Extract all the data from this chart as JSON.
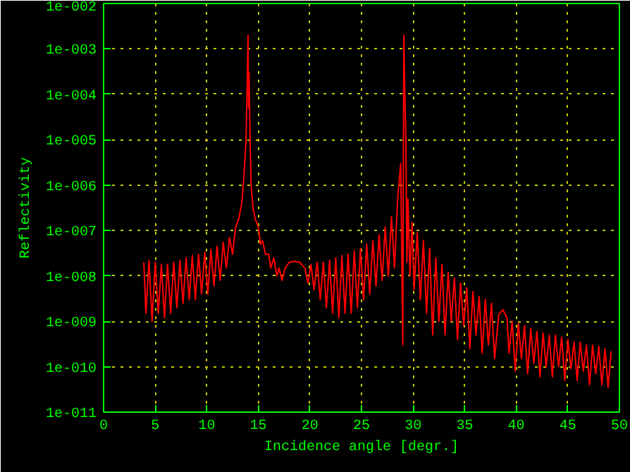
{
  "chart_data": {
    "type": "line",
    "xlabel": "Incidence angle [degr.]",
    "ylabel": "Reflectivity",
    "log": "y",
    "grid": true,
    "line_style": "solid",
    "xlim": [
      0,
      50
    ],
    "xticks": [
      0,
      5,
      10,
      15,
      20,
      25,
      30,
      35,
      40,
      45,
      50
    ],
    "ylim": [
      1e-11,
      0.01
    ],
    "yticks": [
      {
        "value": 1e-11,
        "label": "1e-011"
      },
      {
        "value": 1e-10,
        "label": "1e-010"
      },
      {
        "value": 1e-09,
        "label": "1e-009"
      },
      {
        "value": 1e-08,
        "label": "1e-008"
      },
      {
        "value": 1e-07,
        "label": "1e-007"
      },
      {
        "value": 1e-06,
        "label": "1e-006"
      },
      {
        "value": 1e-05,
        "label": "1e-005"
      },
      {
        "value": 0.0001,
        "label": "1e-004"
      },
      {
        "value": 0.001,
        "label": "1e-003"
      },
      {
        "value": 0.01,
        "label": "1e-002"
      }
    ],
    "series": [
      {
        "color": "#ff0000",
        "x": [
          3.9,
          4.1,
          4.4,
          4.7,
          5.0,
          5.3,
          5.6,
          5.9,
          6.2,
          6.5,
          6.8,
          7.1,
          7.4,
          7.7,
          8.0,
          8.3,
          8.6,
          8.9,
          9.2,
          9.5,
          9.8,
          10.1,
          10.4,
          10.7,
          11.0,
          11.3,
          11.6,
          11.9,
          12.2,
          12.5,
          12.8,
          13.1,
          13.4,
          13.6,
          13.8,
          13.9,
          14.0,
          14.05,
          14.1,
          14.2,
          14.3,
          14.5,
          14.7,
          15.0,
          15.2,
          15.4,
          15.7,
          16.0,
          16.2,
          16.5,
          16.8,
          17.0,
          17.3,
          17.6,
          18.0,
          18.5,
          19.0,
          19.5,
          19.8,
          20.1,
          20.4,
          20.7,
          21.0,
          21.3,
          21.6,
          21.9,
          22.2,
          22.5,
          22.8,
          23.1,
          23.4,
          23.7,
          24.0,
          24.3,
          24.6,
          24.9,
          25.2,
          25.5,
          25.8,
          26.1,
          26.4,
          26.7,
          27.0,
          27.3,
          27.6,
          27.9,
          28.2,
          28.5,
          28.8,
          29.0,
          29.1,
          29.2,
          29.3,
          29.4,
          29.5,
          29.7,
          29.9,
          30.1,
          30.4,
          30.7,
          31.0,
          31.3,
          31.6,
          31.9,
          32.2,
          32.5,
          32.8,
          33.1,
          33.4,
          33.7,
          34.0,
          34.3,
          34.6,
          34.9,
          35.2,
          35.5,
          35.8,
          36.1,
          36.4,
          36.7,
          37.0,
          37.3,
          37.6,
          37.9,
          38.3,
          38.7,
          39.1,
          39.3,
          39.6,
          39.9,
          40.2,
          40.5,
          40.8,
          41.1,
          41.4,
          41.7,
          42.0,
          42.3,
          42.6,
          42.9,
          43.2,
          43.5,
          43.8,
          44.1,
          44.4,
          44.7,
          45.0,
          45.3,
          45.6,
          45.9,
          46.2,
          46.5,
          46.8,
          47.1,
          47.4,
          47.7,
          48.0,
          48.3,
          48.6,
          48.9,
          49.2
        ],
        "values": [
          2e-08,
          1.5e-09,
          2.2e-08,
          1e-09,
          2e-08,
          1.5e-09,
          1.8e-08,
          1.2e-09,
          1.8e-08,
          1.5e-09,
          2e-08,
          2e-09,
          2.2e-08,
          2.5e-09,
          2.5e-08,
          3e-09,
          2.8e-08,
          3e-09,
          3e-08,
          4e-09,
          3.3e-08,
          4e-09,
          3.8e-08,
          6e-09,
          4.5e-08,
          8e-09,
          5.5e-08,
          1.5e-08,
          7e-08,
          3e-08,
          1.2e-07,
          1.8e-07,
          4e-07,
          1.5e-06,
          9e-06,
          0.0001,
          0.002,
          5e-05,
          0.0003,
          1e-05,
          1e-06,
          3e-07,
          1.8e-07,
          1.2e-07,
          5e-08,
          6e-08,
          3e-08,
          3e-08,
          1.5e-08,
          2.5e-08,
          1e-08,
          1.5e-08,
          8e-09,
          1.5e-08,
          2e-08,
          2.1e-08,
          2e-08,
          1.5e-08,
          7e-09,
          1.8e-08,
          5e-09,
          2e-08,
          3e-09,
          2e-08,
          2e-09,
          2.2e-08,
          1.5e-09,
          2.5e-08,
          1.2e-09,
          2.8e-08,
          1.5e-09,
          3e-08,
          1.5e-09,
          3.5e-08,
          2e-09,
          4e-08,
          3e-09,
          5e-08,
          4e-09,
          6e-08,
          6e-09,
          8e-08,
          8e-09,
          1.2e-07,
          1e-08,
          2e-07,
          1.5e-08,
          5e-07,
          3e-06,
          3e-10,
          0.002,
          0.0001,
          1e-05,
          2e-08,
          5e-07,
          1e-08,
          1.5e-07,
          5e-09,
          9e-08,
          3e-09,
          6e-08,
          1.5e-09,
          4e-08,
          5e-10,
          2.5e-08,
          1e-09,
          1.8e-08,
          5e-10,
          1.2e-08,
          1e-09,
          9e-09,
          4e-10,
          7e-09,
          8e-10,
          5.5e-09,
          2.5e-10,
          4.5e-09,
          5e-10,
          3.5e-09,
          2e-10,
          3e-09,
          3e-10,
          2.5e-09,
          1.5e-10,
          1.4e-09,
          1.8e-09,
          1.2e-09,
          2e-10,
          1e-09,
          8e-11,
          9e-10,
          1.5e-10,
          8e-10,
          7e-11,
          7e-10,
          1.2e-10,
          6e-10,
          6e-11,
          5.5e-10,
          1e-10,
          5e-10,
          6e-11,
          5e-10,
          1e-10,
          4.5e-10,
          5e-11,
          4e-10,
          9e-11,
          3.5e-10,
          5e-11,
          3.5e-10,
          8e-11,
          3e-10,
          4e-11,
          3e-10,
          7e-11,
          2.8e-10,
          4e-11,
          2.5e-10,
          3.5e-11,
          2.2e-10
        ]
      }
    ]
  }
}
